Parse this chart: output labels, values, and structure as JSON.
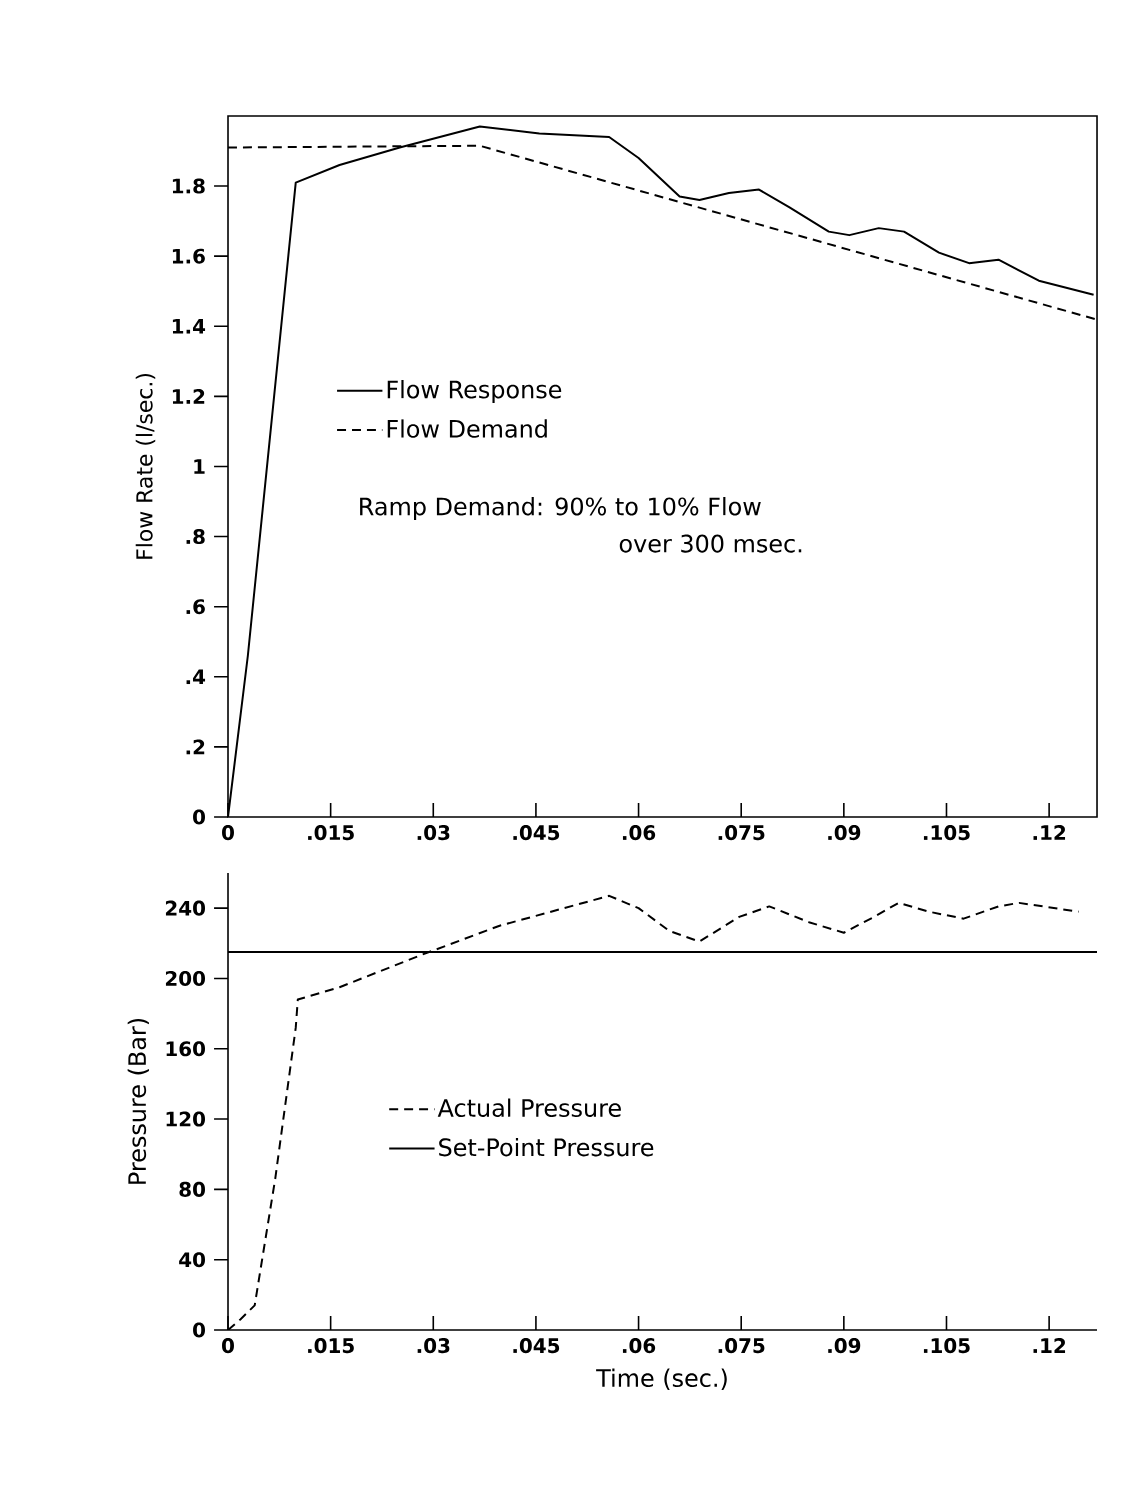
{
  "chart_data": [
    {
      "type": "line",
      "ylabel": "Flow Rate (l/sec.)",
      "xlim": [
        0,
        0.127
      ],
      "ylim": [
        0,
        2
      ],
      "xticks": [
        0,
        {
          "value": 0.015,
          "label": ".015"
        },
        {
          "value": 0.03,
          "label": ".03"
        },
        {
          "value": 0.045,
          "label": ".045"
        },
        {
          "value": 0.06,
          "label": ".06"
        },
        {
          "value": 0.075,
          "label": ".075"
        },
        {
          "value": 0.09,
          "label": ".09"
        },
        {
          "value": 0.105,
          "label": ".105"
        },
        {
          "value": 0.12,
          "label": ".12"
        }
      ],
      "yticks": [
        0,
        {
          "value": 0.2,
          "label": ".2"
        },
        {
          "value": 0.4,
          "label": ".4"
        },
        {
          "value": 0.6,
          "label": ".6"
        },
        {
          "value": 0.8,
          "label": ".8"
        },
        1,
        1.2,
        1.4,
        1.6,
        1.8
      ],
      "legend": "left",
      "grid": false,
      "series": [
        {
          "name": "Flow Response",
          "color": "#000000",
          "line_style": "solid",
          "x": [
            0,
            0.0029,
            0.0099,
            0.0163,
            0.0251,
            0.0368,
            0.0455,
            0.0557,
            0.06,
            0.066,
            0.0689,
            0.0732,
            0.0776,
            0.082,
            0.0878,
            0.0908,
            0.0951,
            0.0988,
            0.1039,
            0.1083,
            0.1126,
            0.1185,
            0.1265
          ],
          "values": [
            0,
            0.46,
            1.81,
            1.86,
            1.91,
            1.97,
            1.95,
            1.94,
            1.88,
            1.77,
            1.76,
            1.78,
            1.79,
            1.74,
            1.67,
            1.66,
            1.68,
            1.67,
            1.61,
            1.58,
            1.59,
            1.53,
            1.49
          ]
        },
        {
          "name": "Flow Demand",
          "color": "#000000",
          "line_style": "dashed",
          "x": [
            0,
            0.0368,
            0.1268
          ],
          "values": [
            1.91,
            1.915,
            1.42
          ]
        }
      ],
      "annotations": [
        "Ramp Demand: 90% to 10% Flow",
        "over 300 msec."
      ]
    },
    {
      "type": "line",
      "xlabel": "Time (sec.)",
      "ylabel": "Pressure (Bar)",
      "xlim": [
        0,
        0.127
      ],
      "ylim": [
        0,
        260
      ],
      "xticks": [
        0,
        {
          "value": 0.015,
          "label": ".015"
        },
        {
          "value": 0.03,
          "label": ".03"
        },
        {
          "value": 0.045,
          "label": ".045"
        },
        {
          "value": 0.06,
          "label": ".06"
        },
        {
          "value": 0.075,
          "label": ".075"
        },
        {
          "value": 0.09,
          "label": ".09"
        },
        {
          "value": 0.105,
          "label": ".105"
        },
        {
          "value": 0.12,
          "label": ".12"
        }
      ],
      "yticks": [
        0,
        40,
        80,
        120,
        160,
        200,
        240
      ],
      "legend": "left",
      "grid": false,
      "series": [
        {
          "name": "Actual Pressure",
          "color": "#000000",
          "line_style": "dashed",
          "x": [
            0,
            0.0018,
            0.0039,
            0.0069,
            0.0099,
            0.0102,
            0.0163,
            0.028,
            0.0397,
            0.0557,
            0.06,
            0.0645,
            0.0689,
            0.0747,
            0.0791,
            0.0849,
            0.09,
            0.0944,
            0.098,
            0.1024,
            0.1075,
            0.1126,
            0.1156,
            0.1243
          ],
          "values": [
            0,
            6,
            14,
            86,
            172,
            188,
            195,
            213,
            230,
            247,
            240,
            227,
            221,
            235,
            241,
            232,
            226,
            235,
            243,
            238,
            234,
            241,
            243,
            238
          ]
        },
        {
          "name": "Set-Point Pressure",
          "color": "#000000",
          "line_style": "solid",
          "x": [
            0,
            0.127
          ],
          "values": [
            215,
            215
          ]
        }
      ]
    }
  ]
}
